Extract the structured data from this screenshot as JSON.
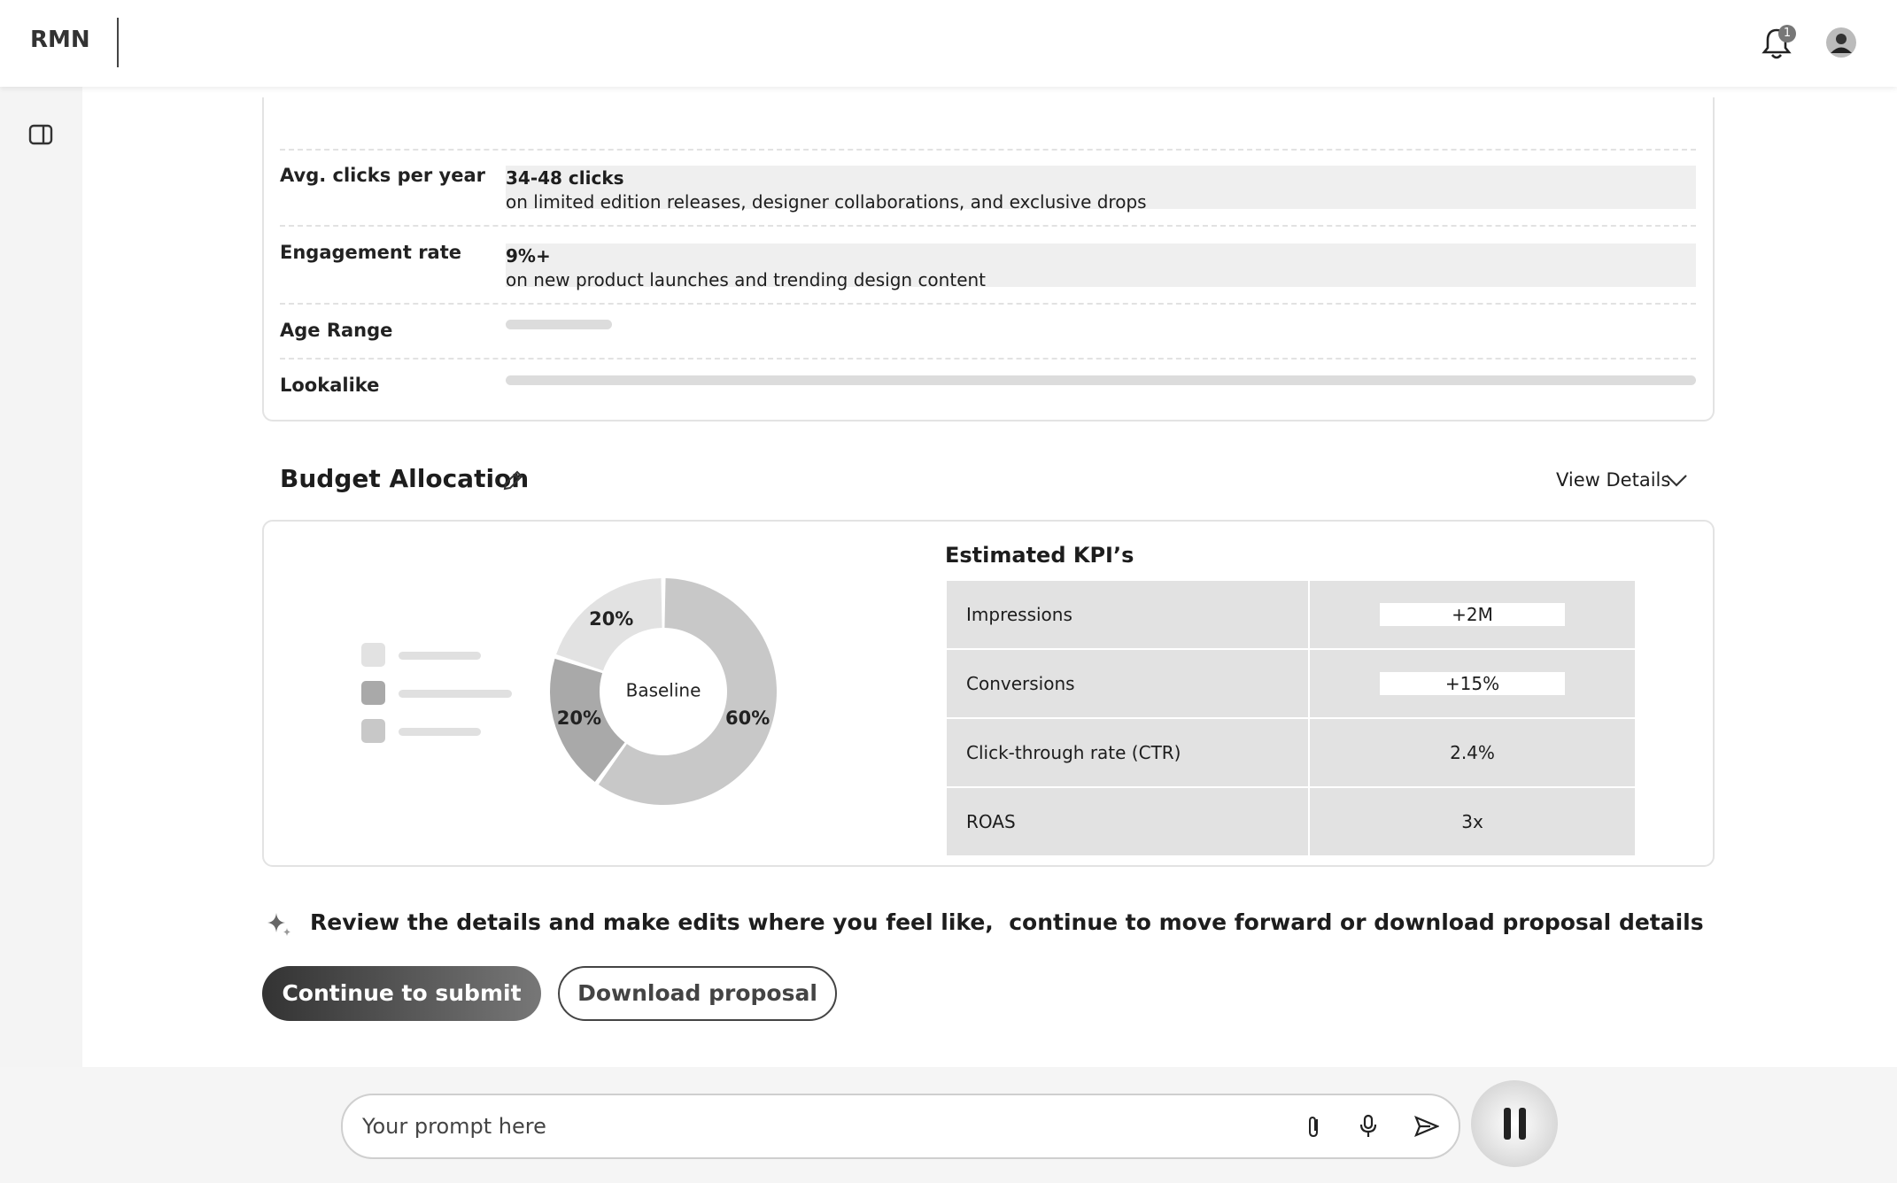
{
  "header": {
    "logo": "RMN",
    "notification_count": "1"
  },
  "audience": {
    "rows": [
      {
        "label": "Avg. clicks per year",
        "value": "34-48 clicks",
        "detail": "on limited edition releases, designer collaborations, and exclusive drops"
      },
      {
        "label": "Engagement rate",
        "value": "9%+",
        "detail": "on new product launches and trending design content"
      },
      {
        "label": "Age Range"
      },
      {
        "label": "Lookalike"
      }
    ]
  },
  "budget": {
    "title": "Budget Allocation",
    "view_details": "View Details"
  },
  "chart_data": {
    "type": "donut",
    "center_label": "Baseline",
    "values": [
      60,
      20,
      20
    ],
    "value_labels": [
      "60%",
      "20%",
      "20%"
    ],
    "colors": [
      "#c8c8c8",
      "#a9a9a9",
      "#e2e2e2"
    ]
  },
  "kpis": {
    "title": "Estimated KPI’s",
    "rows": [
      [
        "Impressions",
        "+2M"
      ],
      [
        "Conversions",
        "+15%"
      ],
      [
        "Click-through rate (CTR)",
        "2.4%"
      ],
      [
        "ROAS",
        "3x"
      ]
    ]
  },
  "prompt": {
    "message": "Review the details and make edits where you feel like,  continue to move forward or download proposal details",
    "primary": "Continue to submit",
    "secondary": "Download proposal"
  },
  "composer": {
    "placeholder": "Your prompt here"
  }
}
